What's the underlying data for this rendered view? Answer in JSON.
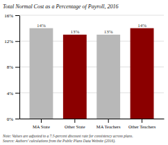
{
  "chart_data": {
    "type": "bar",
    "title": "Total Normal Cost as a Percentage of Payroll, 2016",
    "categories": [
      "MA State",
      "Other State",
      "MA Teachers",
      "Other Teachers"
    ],
    "values": [
      14,
      13,
      13,
      14
    ],
    "value_labels": [
      "14%",
      "13%",
      "13%",
      "14%"
    ],
    "data_labels": true,
    "colors": [
      "#b8b8b8",
      "#8b0000",
      "#b8b8b8",
      "#8b0000"
    ],
    "ylim": [
      0,
      16
    ],
    "yticks": [
      {
        "value": 0,
        "label": "0%"
      },
      {
        "value": 4,
        "label": "4%"
      },
      {
        "value": 8,
        "label": "8%"
      },
      {
        "value": 12,
        "label": "12%"
      },
      {
        "value": 16,
        "label": "16%"
      }
    ],
    "grid": true,
    "annotations": [
      "Note: Values are adjusted to a 7.5-percent discount rate for consistency across plans.",
      "Source: Authors’ calculations from the Public Plans Data Website (2016)."
    ]
  }
}
